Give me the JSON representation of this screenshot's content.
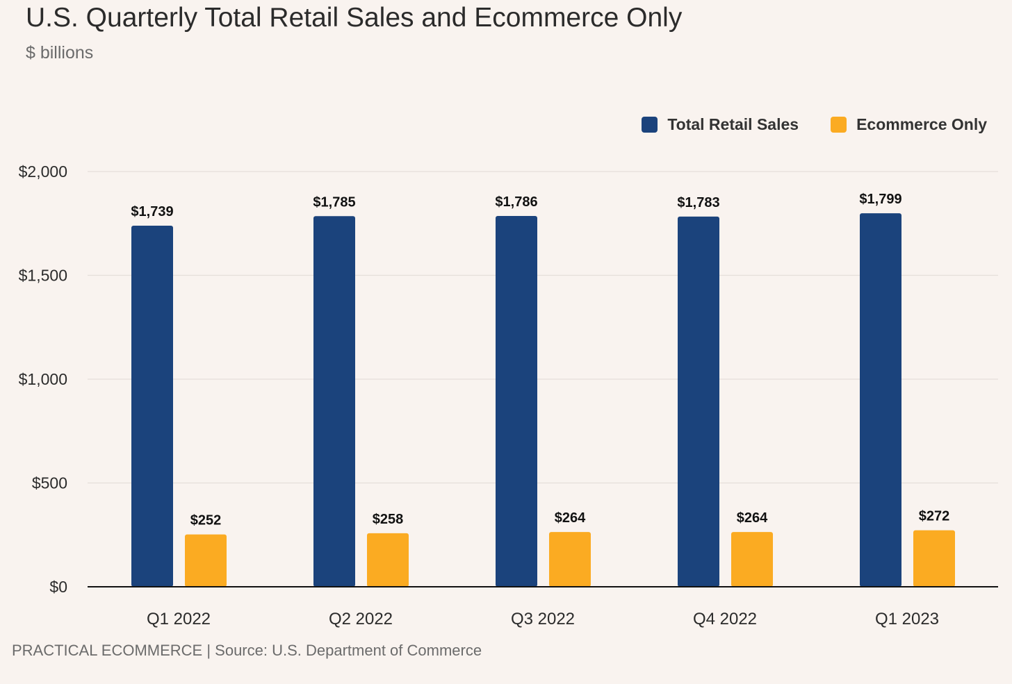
{
  "header": {
    "title": "U.S. Quarterly Total Retail Sales and Ecommerce Only",
    "subtitle": "$ billions"
  },
  "legend": {
    "items": [
      {
        "label": "Total Retail Sales",
        "color": "#1b437c"
      },
      {
        "label": "Ecommerce Only",
        "color": "#fbab22"
      }
    ]
  },
  "footer": {
    "text": "PRACTICAL ECOMMERCE | Source: U.S. Department of Commerce"
  },
  "chart_data": {
    "type": "bar",
    "title": "U.S. Quarterly Total Retail Sales and Ecommerce Only",
    "subtitle": "$ billions",
    "xlabel": "",
    "ylabel": "",
    "categories": [
      "Q1 2022",
      "Q2 2022",
      "Q3 2022",
      "Q4 2022",
      "Q1 2023"
    ],
    "series": [
      {
        "name": "Total Retail Sales",
        "color": "#1b437c",
        "values": [
          1739,
          1785,
          1786,
          1783,
          1799
        ],
        "labels": [
          "$1,739",
          "$1,785",
          "$1,786",
          "$1,783",
          "$1,799"
        ]
      },
      {
        "name": "Ecommerce Only",
        "color": "#fbab22",
        "values": [
          252,
          258,
          264,
          264,
          272
        ],
        "labels": [
          "$252",
          "$258",
          "$264",
          "$264",
          "$272"
        ]
      }
    ],
    "ylim": [
      0,
      2000
    ],
    "yticks": [
      0,
      500,
      1000,
      1500,
      2000
    ],
    "ytick_labels": [
      "$0",
      "$500",
      "$1,000",
      "$1,500",
      "$2,000"
    ],
    "grid": true,
    "legend_position": "top-right",
    "source": "PRACTICAL ECOMMERCE | Source: U.S. Department of Commerce"
  }
}
